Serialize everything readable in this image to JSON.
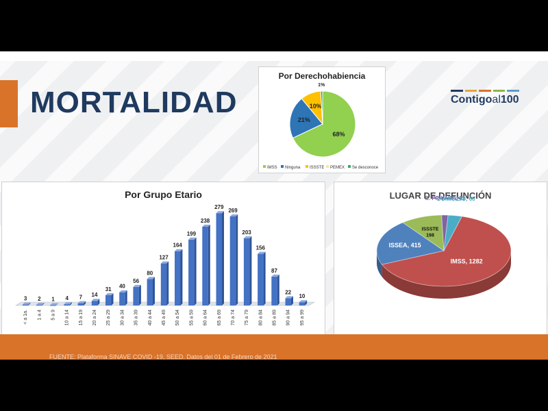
{
  "slide": {
    "title": "MORTALIDAD",
    "logo": {
      "word1": "Contigo",
      "word2": "al",
      "word3": "100",
      "bar_colors": [
        "#1f3a5f",
        "#e8a33d",
        "#d9732a",
        "#8bb84a",
        "#5aa0c8"
      ]
    },
    "source": "FUENTE: Plataforma SINAVE COVID -19, SEED. Datos del 01 de Febrero de 2021"
  },
  "chart_data": [
    {
      "type": "pie",
      "title": "Por Derechohabiencia",
      "labels": [
        "IMSS",
        "Ninguna",
        "ISSSTE",
        "PEMEX",
        "Se desconoce"
      ],
      "values": [
        68,
        21,
        10,
        0,
        1
      ],
      "value_labels": [
        "68%",
        "21%",
        "10%",
        "",
        "1%"
      ],
      "colors": [
        "#92d050",
        "#2e75b6",
        "#ffc000",
        "#ffe699",
        "#3aaa5c"
      ],
      "legend": "bottom"
    },
    {
      "type": "bar",
      "title": "Por Grupo Etario",
      "categories": [
        "< a 1a.",
        "1 a 4",
        "5 a 9",
        "10 a 14",
        "15 a 19",
        "20 a 24",
        "25 a 29",
        "30 a 34",
        "35 a 39",
        "40 a 44",
        "45 a 49",
        "50 a 54",
        "55 a 59",
        "60 a 64",
        "65 a 69",
        "70 a 74",
        "75 a 79",
        "80 a 84",
        "85 a 89",
        "90 a 94",
        "95 a 99"
      ],
      "values": [
        3,
        2,
        1,
        4,
        7,
        14,
        31,
        40,
        56,
        80,
        127,
        164,
        199,
        238,
        279,
        269,
        203,
        156,
        87,
        22,
        10
      ],
      "color": "#4472c4",
      "ylim": [
        0,
        300
      ],
      "grid": false
    },
    {
      "type": "pie",
      "title": "LUGAR DE DEFUNCIÓN",
      "labels": [
        "IMSS",
        "ISSEA",
        "ISSSTE",
        "C. PRIVADA",
        "DOMICILIO"
      ],
      "values": [
        1282,
        415,
        198,
        31,
        66
      ],
      "value_labels": [
        "IMSS, 1282",
        "ISSEA, 415",
        "ISSSTE 198",
        "C. PRIVADA, 31",
        "DOMICILIO, 66"
      ],
      "colors": [
        "#c0504d",
        "#4f81bd",
        "#9bbb59",
        "#8064a2",
        "#4bacc6"
      ],
      "label_colors": [
        "#ffffff",
        "#ffffff",
        "#111111",
        "#8064a2",
        "#4bacc6"
      ],
      "style": "3d"
    }
  ]
}
